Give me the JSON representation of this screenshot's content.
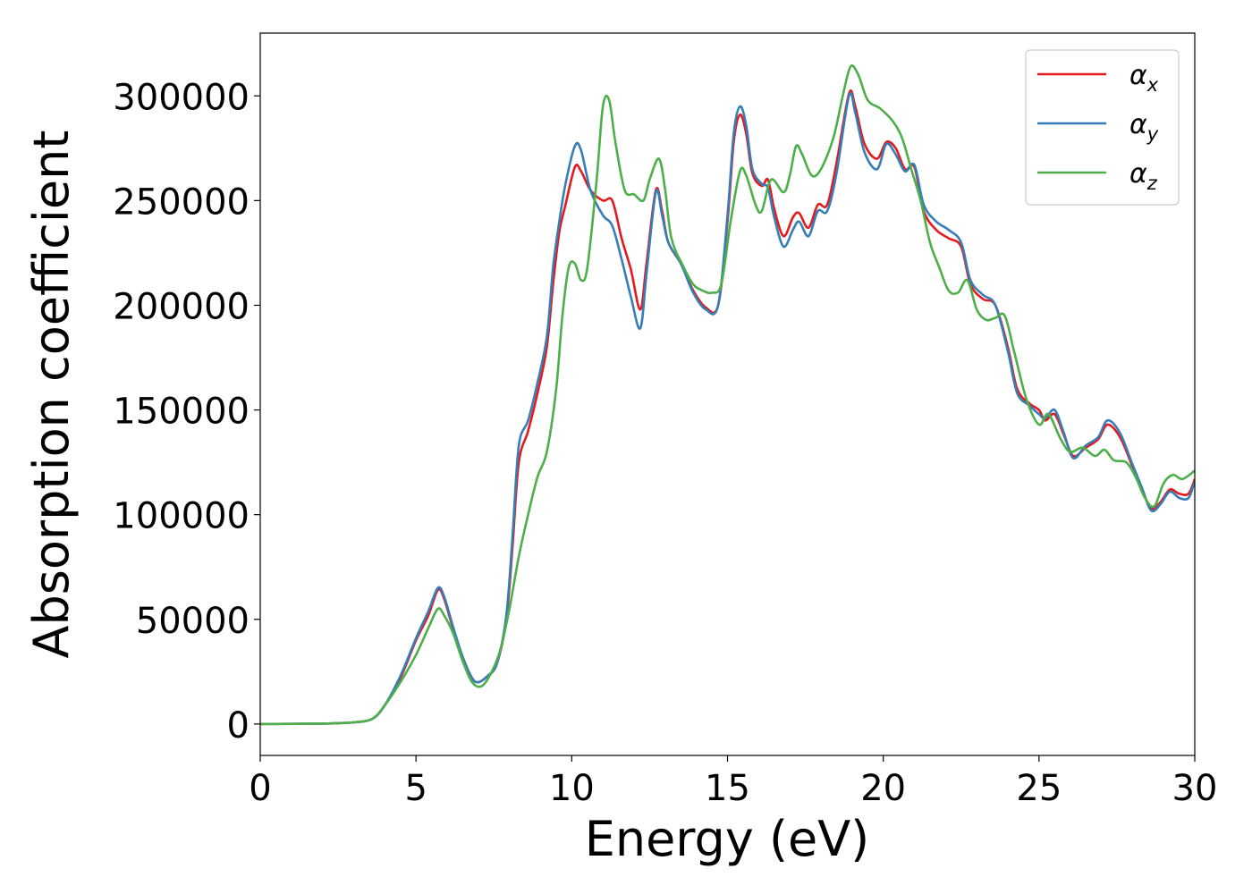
{
  "chart_data": {
    "type": "line",
    "title": "",
    "xlabel": "Energy (eV)",
    "ylabel": "Absorption coefficient",
    "xlim": [
      0,
      30
    ],
    "ylim": [
      -15000,
      330000
    ],
    "xticks": [
      0,
      5,
      10,
      15,
      20,
      25,
      30
    ],
    "xtick_labels": [
      "0",
      "5",
      "10",
      "15",
      "20",
      "25",
      "30"
    ],
    "yticks": [
      0,
      50000,
      100000,
      150000,
      200000,
      250000,
      300000
    ],
    "ytick_labels": [
      "0",
      "50000",
      "100000",
      "150000",
      "200000",
      "250000",
      "300000"
    ],
    "grid": false,
    "legend_position": "top-right",
    "series": [
      {
        "name": "αx",
        "symbol": "α",
        "subscript": "x",
        "color": "#e41a1c",
        "points": [
          [
            0,
            0
          ],
          [
            2,
            200
          ],
          [
            3,
            800
          ],
          [
            3.6,
            2500
          ],
          [
            4,
            9000
          ],
          [
            4.5,
            22000
          ],
          [
            5,
            40000
          ],
          [
            5.4,
            52000
          ],
          [
            5.7,
            64000
          ],
          [
            5.9,
            60000
          ],
          [
            6.2,
            45000
          ],
          [
            6.5,
            32000
          ],
          [
            6.8,
            22000
          ],
          [
            7,
            20000
          ],
          [
            7.3,
            23000
          ],
          [
            7.6,
            29000
          ],
          [
            7.9,
            50000
          ],
          [
            8.1,
            85000
          ],
          [
            8.3,
            125000
          ],
          [
            8.6,
            140000
          ],
          [
            8.9,
            158000
          ],
          [
            9.2,
            180000
          ],
          [
            9.4,
            210000
          ],
          [
            9.6,
            235000
          ],
          [
            9.8,
            248000
          ],
          [
            10.1,
            266000
          ],
          [
            10.3,
            264000
          ],
          [
            10.6,
            255000
          ],
          [
            11,
            250000
          ],
          [
            11.3,
            250000
          ],
          [
            11.6,
            232000
          ],
          [
            11.9,
            217000
          ],
          [
            12.2,
            198000
          ],
          [
            12.4,
            220000
          ],
          [
            12.7,
            255000
          ],
          [
            12.9,
            245000
          ],
          [
            13.1,
            230000
          ],
          [
            13.5,
            220000
          ],
          [
            13.9,
            207000
          ],
          [
            14.3,
            199000
          ],
          [
            14.7,
            200000
          ],
          [
            15,
            240000
          ],
          [
            15.2,
            278000
          ],
          [
            15.4,
            291000
          ],
          [
            15.6,
            282000
          ],
          [
            15.8,
            263000
          ],
          [
            16.1,
            257000
          ],
          [
            16.3,
            260000
          ],
          [
            16.5,
            246000
          ],
          [
            16.8,
            233000
          ],
          [
            17.1,
            242000
          ],
          [
            17.3,
            244000
          ],
          [
            17.6,
            237000
          ],
          [
            17.9,
            248000
          ],
          [
            18.2,
            248000
          ],
          [
            18.5,
            268000
          ],
          [
            18.9,
            301000
          ],
          [
            19.1,
            295000
          ],
          [
            19.4,
            277000
          ],
          [
            19.8,
            270000
          ],
          [
            20.1,
            278000
          ],
          [
            20.4,
            275000
          ],
          [
            20.7,
            265000
          ],
          [
            21,
            266000
          ],
          [
            21.3,
            245000
          ],
          [
            21.7,
            236000
          ],
          [
            22.1,
            232000
          ],
          [
            22.5,
            228000
          ],
          [
            22.8,
            210000
          ],
          [
            23.2,
            203000
          ],
          [
            23.6,
            200000
          ],
          [
            24,
            180000
          ],
          [
            24.3,
            160000
          ],
          [
            24.7,
            153000
          ],
          [
            25,
            150000
          ],
          [
            25.2,
            145000
          ],
          [
            25.5,
            148000
          ],
          [
            25.8,
            138000
          ],
          [
            26.1,
            128000
          ],
          [
            26.5,
            132000
          ],
          [
            26.9,
            136000
          ],
          [
            27.2,
            143000
          ],
          [
            27.6,
            137000
          ],
          [
            28,
            123000
          ],
          [
            28.3,
            112000
          ],
          [
            28.6,
            103000
          ],
          [
            28.9,
            106000
          ],
          [
            29.2,
            112000
          ],
          [
            29.5,
            110000
          ],
          [
            29.8,
            110000
          ],
          [
            30,
            117000
          ]
        ]
      },
      {
        "name": "αy",
        "symbol": "α",
        "subscript": "y",
        "color": "#377eb8",
        "points": [
          [
            0,
            0
          ],
          [
            2,
            200
          ],
          [
            3,
            800
          ],
          [
            3.6,
            2500
          ],
          [
            4,
            9000
          ],
          [
            4.5,
            23000
          ],
          [
            5,
            41000
          ],
          [
            5.4,
            54000
          ],
          [
            5.7,
            65000
          ],
          [
            5.9,
            61000
          ],
          [
            6.2,
            46000
          ],
          [
            6.5,
            32000
          ],
          [
            6.8,
            22000
          ],
          [
            7,
            20000
          ],
          [
            7.3,
            23000
          ],
          [
            7.6,
            29000
          ],
          [
            7.9,
            52000
          ],
          [
            8.1,
            90000
          ],
          [
            8.3,
            133000
          ],
          [
            8.6,
            145000
          ],
          [
            8.9,
            163000
          ],
          [
            9.2,
            185000
          ],
          [
            9.4,
            218000
          ],
          [
            9.6,
            240000
          ],
          [
            9.8,
            258000
          ],
          [
            10.1,
            276000
          ],
          [
            10.3,
            274000
          ],
          [
            10.6,
            255000
          ],
          [
            11,
            243000
          ],
          [
            11.3,
            238000
          ],
          [
            11.6,
            222000
          ],
          [
            11.9,
            204000
          ],
          [
            12.2,
            189000
          ],
          [
            12.4,
            215000
          ],
          [
            12.7,
            254000
          ],
          [
            12.9,
            243000
          ],
          [
            13.1,
            230000
          ],
          [
            13.5,
            220000
          ],
          [
            13.9,
            206000
          ],
          [
            14.3,
            198000
          ],
          [
            14.7,
            200000
          ],
          [
            15,
            243000
          ],
          [
            15.2,
            282000
          ],
          [
            15.4,
            295000
          ],
          [
            15.6,
            286000
          ],
          [
            15.8,
            265000
          ],
          [
            16.1,
            258000
          ],
          [
            16.3,
            256000
          ],
          [
            16.5,
            242000
          ],
          [
            16.8,
            228000
          ],
          [
            17.1,
            236000
          ],
          [
            17.3,
            240000
          ],
          [
            17.6,
            233000
          ],
          [
            17.9,
            245000
          ],
          [
            18.2,
            245000
          ],
          [
            18.5,
            263000
          ],
          [
            18.9,
            300000
          ],
          [
            19.1,
            292000
          ],
          [
            19.4,
            273000
          ],
          [
            19.8,
            265000
          ],
          [
            20.1,
            277000
          ],
          [
            20.4,
            272000
          ],
          [
            20.7,
            264000
          ],
          [
            21,
            267000
          ],
          [
            21.3,
            248000
          ],
          [
            21.7,
            240000
          ],
          [
            22.1,
            236000
          ],
          [
            22.5,
            230000
          ],
          [
            22.8,
            212000
          ],
          [
            23.2,
            205000
          ],
          [
            23.6,
            200000
          ],
          [
            24,
            178000
          ],
          [
            24.3,
            158000
          ],
          [
            24.7,
            152000
          ],
          [
            25,
            148000
          ],
          [
            25.2,
            146000
          ],
          [
            25.5,
            150000
          ],
          [
            25.8,
            139000
          ],
          [
            26.1,
            127000
          ],
          [
            26.5,
            133000
          ],
          [
            26.9,
            137000
          ],
          [
            27.2,
            145000
          ],
          [
            27.6,
            139000
          ],
          [
            28,
            124000
          ],
          [
            28.3,
            113000
          ],
          [
            28.6,
            102000
          ],
          [
            28.9,
            105000
          ],
          [
            29.2,
            111000
          ],
          [
            29.5,
            108000
          ],
          [
            29.8,
            108000
          ],
          [
            30,
            116000
          ]
        ]
      },
      {
        "name": "αz",
        "symbol": "α",
        "subscript": "z",
        "color": "#4daf4a",
        "points": [
          [
            0,
            0
          ],
          [
            2,
            200
          ],
          [
            3,
            800
          ],
          [
            3.6,
            2500
          ],
          [
            4,
            9000
          ],
          [
            4.5,
            20000
          ],
          [
            5,
            33000
          ],
          [
            5.4,
            46000
          ],
          [
            5.7,
            55000
          ],
          [
            5.9,
            52000
          ],
          [
            6.2,
            43000
          ],
          [
            6.5,
            30000
          ],
          [
            6.8,
            20000
          ],
          [
            7.1,
            18000
          ],
          [
            7.4,
            24000
          ],
          [
            7.7,
            35000
          ],
          [
            8,
            55000
          ],
          [
            8.3,
            80000
          ],
          [
            8.6,
            100000
          ],
          [
            8.9,
            118000
          ],
          [
            9.2,
            130000
          ],
          [
            9.5,
            160000
          ],
          [
            9.7,
            195000
          ],
          [
            9.9,
            218000
          ],
          [
            10.1,
            220000
          ],
          [
            10.3,
            212000
          ],
          [
            10.5,
            218000
          ],
          [
            10.8,
            260000
          ],
          [
            11,
            295000
          ],
          [
            11.2,
            298000
          ],
          [
            11.4,
            278000
          ],
          [
            11.7,
            255000
          ],
          [
            12,
            253000
          ],
          [
            12.3,
            250000
          ],
          [
            12.5,
            260000
          ],
          [
            12.8,
            270000
          ],
          [
            13,
            255000
          ],
          [
            13.2,
            232000
          ],
          [
            13.6,
            218000
          ],
          [
            13.9,
            210000
          ],
          [
            14.2,
            207000
          ],
          [
            14.5,
            206000
          ],
          [
            14.8,
            210000
          ],
          [
            15.1,
            240000
          ],
          [
            15.4,
            264000
          ],
          [
            15.6,
            262000
          ],
          [
            15.9,
            248000
          ],
          [
            16.1,
            245000
          ],
          [
            16.4,
            260000
          ],
          [
            16.8,
            254000
          ],
          [
            17,
            262000
          ],
          [
            17.2,
            276000
          ],
          [
            17.4,
            272000
          ],
          [
            17.7,
            262000
          ],
          [
            18,
            265000
          ],
          [
            18.4,
            280000
          ],
          [
            18.7,
            300000
          ],
          [
            18.95,
            314000
          ],
          [
            19.2,
            310000
          ],
          [
            19.5,
            298000
          ],
          [
            19.9,
            294000
          ],
          [
            20.3,
            288000
          ],
          [
            20.6,
            280000
          ],
          [
            20.9,
            265000
          ],
          [
            21.2,
            250000
          ],
          [
            21.5,
            230000
          ],
          [
            21.8,
            218000
          ],
          [
            22.1,
            207000
          ],
          [
            22.4,
            206000
          ],
          [
            22.7,
            212000
          ],
          [
            23,
            198000
          ],
          [
            23.3,
            193000
          ],
          [
            23.6,
            194000
          ],
          [
            23.9,
            195000
          ],
          [
            24.2,
            178000
          ],
          [
            24.6,
            155000
          ],
          [
            25,
            143000
          ],
          [
            25.3,
            148000
          ],
          [
            25.7,
            136000
          ],
          [
            26,
            130000
          ],
          [
            26.4,
            132000
          ],
          [
            26.8,
            128000
          ],
          [
            27.1,
            131000
          ],
          [
            27.4,
            126000
          ],
          [
            27.8,
            125000
          ],
          [
            28.1,
            118000
          ],
          [
            28.4,
            108000
          ],
          [
            28.7,
            104000
          ],
          [
            29,
            115000
          ],
          [
            29.3,
            119000
          ],
          [
            29.6,
            117000
          ],
          [
            30,
            121000
          ]
        ]
      }
    ]
  }
}
